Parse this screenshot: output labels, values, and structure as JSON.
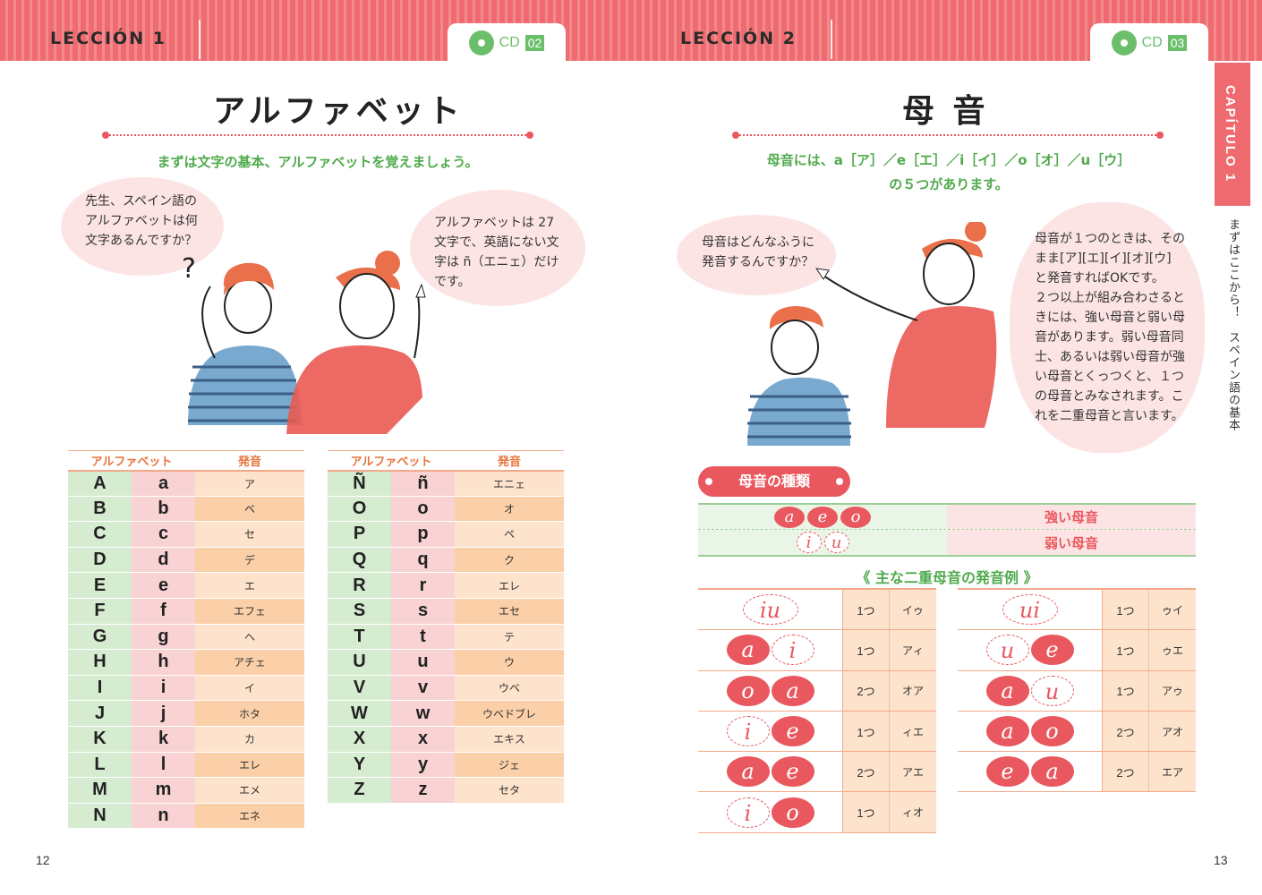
{
  "left_page": {
    "lesson": "LECCIÓN 1",
    "cd_label": "CD",
    "cd_number": "02",
    "title": "アルファベット",
    "lead": "まずは文字の基本、アルファベットを覚えましょう。",
    "bubble_student": "先生、スペイン語の\nアルファベットは何\n文字あるんですか？",
    "bubble_teacher": "アルファベットは 27\n文字で、英語にない文\n字は ñ（エニェ）だけ\nです。",
    "table_headers": {
      "alphabet": "アルファベット",
      "pronunciation": "発音"
    },
    "alphabet_left": [
      {
        "upper": "A",
        "lower": "a",
        "pron": "ア"
      },
      {
        "upper": "B",
        "lower": "b",
        "pron": "ベ"
      },
      {
        "upper": "C",
        "lower": "c",
        "pron": "セ"
      },
      {
        "upper": "D",
        "lower": "d",
        "pron": "デ"
      },
      {
        "upper": "E",
        "lower": "e",
        "pron": "エ"
      },
      {
        "upper": "F",
        "lower": "f",
        "pron": "エフェ"
      },
      {
        "upper": "G",
        "lower": "g",
        "pron": "ヘ"
      },
      {
        "upper": "H",
        "lower": "h",
        "pron": "アチェ"
      },
      {
        "upper": "I",
        "lower": "i",
        "pron": "イ"
      },
      {
        "upper": "J",
        "lower": "j",
        "pron": "ホタ"
      },
      {
        "upper": "K",
        "lower": "k",
        "pron": "カ"
      },
      {
        "upper": "L",
        "lower": "l",
        "pron": "エレ"
      },
      {
        "upper": "M",
        "lower": "m",
        "pron": "エメ"
      },
      {
        "upper": "N",
        "lower": "n",
        "pron": "エネ"
      }
    ],
    "alphabet_right": [
      {
        "upper": "Ñ",
        "lower": "ñ",
        "pron": "エニェ"
      },
      {
        "upper": "O",
        "lower": "o",
        "pron": "オ"
      },
      {
        "upper": "P",
        "lower": "p",
        "pron": "ペ"
      },
      {
        "upper": "Q",
        "lower": "q",
        "pron": "ク"
      },
      {
        "upper": "R",
        "lower": "r",
        "pron": "エレ"
      },
      {
        "upper": "S",
        "lower": "s",
        "pron": "エセ"
      },
      {
        "upper": "T",
        "lower": "t",
        "pron": "テ"
      },
      {
        "upper": "U",
        "lower": "u",
        "pron": "ウ"
      },
      {
        "upper": "V",
        "lower": "v",
        "pron": "ウベ"
      },
      {
        "upper": "W",
        "lower": "w",
        "pron": "ウベドブレ"
      },
      {
        "upper": "X",
        "lower": "x",
        "pron": "エキス"
      },
      {
        "upper": "Y",
        "lower": "y",
        "pron": "ジェ"
      },
      {
        "upper": "Z",
        "lower": "z",
        "pron": "セタ"
      }
    ],
    "page_number": "12"
  },
  "right_page": {
    "lesson": "LECCIÓN 2",
    "cd_label": "CD",
    "cd_number": "03",
    "title": "母 音",
    "lead_line1": "母音には、a［ア］／e［エ］／i［イ］／o［オ］／u［ウ］",
    "lead_line2": "の５つがあります。",
    "bubble_student": "母音はどんなふうに\n発音するんですか？",
    "bubble_teacher": "母音が１つのときは、その\nまま[ア][エ][イ][オ][ウ]\nと発音すればOKです。\n２つ以上が組み合わさると\nきには、強い母音と弱い母\n音があります。弱い母音同\n士、あるいは弱い母音が強\nい母音とくっつくと、１つ\nの母音とみなされます。こ\nれを二重母音と言います。",
    "vowel_types_label": "母音の種類",
    "strong_vowels": [
      "a",
      "e",
      "o"
    ],
    "strong_label": "強い母音",
    "weak_vowels": [
      "i",
      "u"
    ],
    "weak_label": "弱い母音",
    "examples_title": "《 主な二重母音の発音例 》",
    "diphthongs_left": [
      {
        "v1": "i",
        "v2": "u",
        "s1": false,
        "s2": false,
        "joined": true,
        "count": "1つ",
        "pron": "イゥ"
      },
      {
        "v1": "a",
        "v2": "i",
        "s1": true,
        "s2": false,
        "joined": false,
        "count": "1つ",
        "pron": "アィ"
      },
      {
        "v1": "o",
        "v2": "a",
        "s1": true,
        "s2": true,
        "joined": false,
        "count": "2つ",
        "pron": "オア"
      },
      {
        "v1": "i",
        "v2": "e",
        "s1": false,
        "s2": true,
        "joined": false,
        "count": "1つ",
        "pron": "ィエ"
      },
      {
        "v1": "a",
        "v2": "e",
        "s1": true,
        "s2": true,
        "joined": false,
        "count": "2つ",
        "pron": "アエ"
      },
      {
        "v1": "i",
        "v2": "o",
        "s1": false,
        "s2": true,
        "joined": false,
        "count": "1つ",
        "pron": "ィオ"
      }
    ],
    "diphthongs_right": [
      {
        "v1": "u",
        "v2": "i",
        "s1": false,
        "s2": false,
        "joined": true,
        "count": "1つ",
        "pron": "ゥイ"
      },
      {
        "v1": "u",
        "v2": "e",
        "s1": false,
        "s2": true,
        "joined": false,
        "count": "1つ",
        "pron": "ゥエ"
      },
      {
        "v1": "a",
        "v2": "u",
        "s1": true,
        "s2": false,
        "joined": false,
        "count": "1つ",
        "pron": "アゥ"
      },
      {
        "v1": "a",
        "v2": "o",
        "s1": true,
        "s2": true,
        "joined": false,
        "count": "2つ",
        "pron": "アオ"
      },
      {
        "v1": "e",
        "v2": "a",
        "s1": true,
        "s2": true,
        "joined": false,
        "count": "2つ",
        "pron": "エア"
      }
    ],
    "side_tab": "CAPÍTULO 1",
    "side_subtitle": "まずはここから！　スペイン語の基本",
    "page_number": "13"
  },
  "colors": {
    "accent_red": "#e9585e",
    "accent_green": "#4faa4c",
    "orange": "#e8733d"
  }
}
